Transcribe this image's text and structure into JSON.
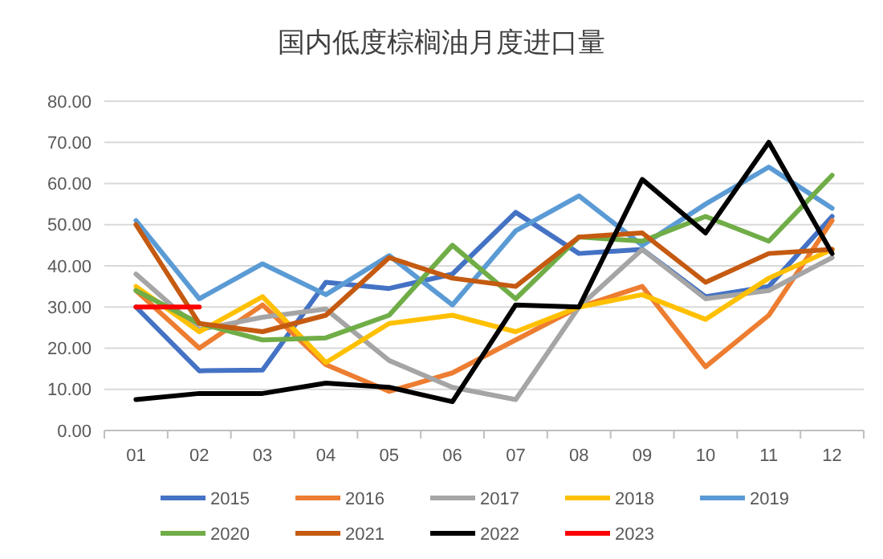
{
  "chart_data": {
    "type": "line",
    "title": "国内低度棕榈油月度进口量",
    "categories": [
      "01",
      "02",
      "03",
      "04",
      "05",
      "06",
      "07",
      "08",
      "09",
      "10",
      "11",
      "12"
    ],
    "series": [
      {
        "name": "2015",
        "color": "#4472c4",
        "values": [
          30,
          14.5,
          14.7,
          36,
          34.5,
          38,
          53,
          43,
          44,
          32.5,
          35,
          52
        ]
      },
      {
        "name": "2016",
        "color": "#ed7d31",
        "values": [
          34,
          20,
          30.5,
          16,
          9.5,
          14,
          22,
          30,
          35,
          15.5,
          28,
          51
        ]
      },
      {
        "name": "2017",
        "color": "#a5a5a5",
        "values": [
          38,
          24.5,
          27.5,
          29.5,
          17,
          10.5,
          7.5,
          30,
          44,
          32,
          34,
          42
        ]
      },
      {
        "name": "2018",
        "color": "#ffc000",
        "values": [
          35,
          24,
          32.5,
          16.5,
          26,
          28,
          24,
          30,
          33,
          27,
          37,
          44
        ]
      },
      {
        "name": "2019",
        "color": "#5b9bd5",
        "values": [
          51,
          32,
          40.5,
          33,
          42.5,
          30.5,
          48.5,
          57,
          45,
          55,
          64,
          54
        ]
      },
      {
        "name": "2020",
        "color": "#70ad47",
        "values": [
          34,
          26,
          22,
          22.5,
          28,
          45,
          32,
          47,
          46,
          52,
          46,
          62
        ]
      },
      {
        "name": "2021",
        "color": "#c55a11",
        "values": [
          50,
          26,
          24,
          28,
          42,
          37,
          35,
          47,
          48,
          36,
          43,
          44
        ]
      },
      {
        "name": "2022",
        "color": "#000000",
        "values": [
          7.5,
          9,
          9,
          11.5,
          10.5,
          7,
          30.5,
          30,
          61,
          48,
          70,
          43
        ]
      },
      {
        "name": "2023",
        "color": "#ff0000",
        "values": [
          30,
          30,
          null,
          null,
          null,
          null,
          null,
          null,
          null,
          null,
          null,
          null
        ]
      }
    ],
    "ylim": [
      0,
      80
    ],
    "yticks": [
      {
        "value": 0,
        "label": "0.00"
      },
      {
        "value": 10,
        "label": "10.00"
      },
      {
        "value": 20,
        "label": "20.00"
      },
      {
        "value": 30,
        "label": "30.00"
      },
      {
        "value": 40,
        "label": "40.00"
      },
      {
        "value": 50,
        "label": "50.00"
      },
      {
        "value": 60,
        "label": "60.00"
      },
      {
        "value": 70,
        "label": "70.00"
      },
      {
        "value": 80,
        "label": "80.00"
      }
    ],
    "grid": "y",
    "legend": "bottom",
    "line_style": "solid"
  }
}
